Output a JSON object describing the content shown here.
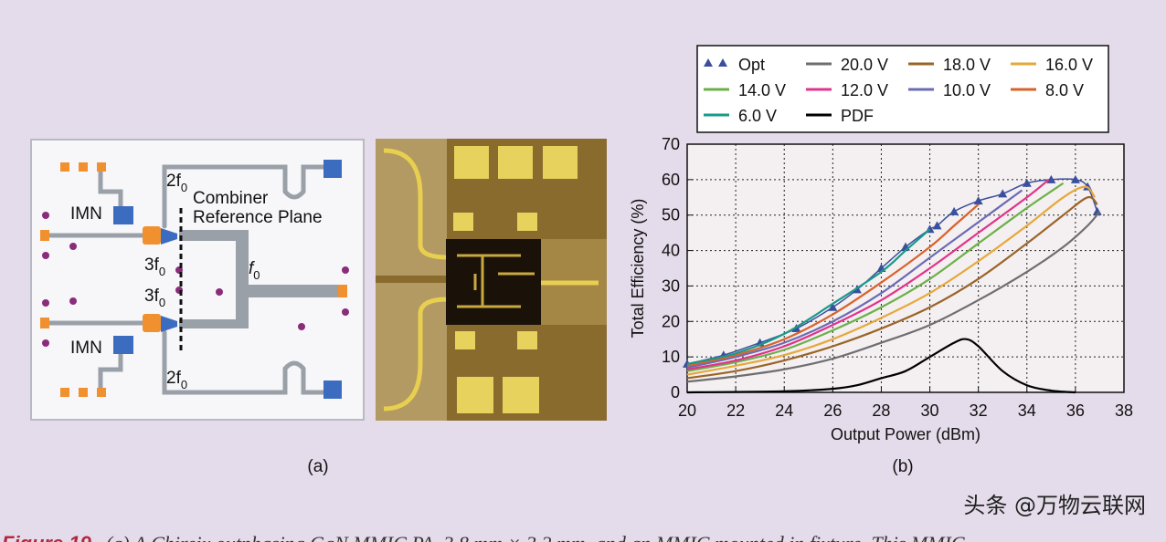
{
  "panel_a": {
    "top_harmonic": {
      "main": "2f",
      "sub": "0"
    },
    "combiner": "Combiner",
    "reference_plane": "Reference Plane",
    "imn_top": "IMN",
    "third_top": {
      "main": "3f",
      "sub": "0"
    },
    "third_bottom": {
      "main": "3f",
      "sub": "0"
    },
    "fundamental": {
      "main": "f",
      "sub": "0"
    },
    "imn_bottom": "IMN",
    "bottom_harmonic": {
      "main": "2f",
      "sub": "0"
    },
    "caption": "(a)"
  },
  "panel_b_caption": "(b)",
  "watermark": "头条 @万物云联网",
  "figure_caption": {
    "label": "Figure 19.",
    "text": "(a) A Chireix outphasing GaN MMIC PA, 3.8 mm × 3.2 mm, and an MMIC mounted in fixture. This MMIC"
  },
  "chart_data": {
    "type": "line",
    "x_label": "Output Power (dBm)",
    "y_label": "Total Efficiency (%)",
    "xlim": [
      20,
      38
    ],
    "ylim": [
      0,
      70
    ],
    "xticks": [
      20,
      22,
      24,
      26,
      28,
      30,
      32,
      34,
      36,
      38
    ],
    "yticks": [
      0,
      10,
      20,
      30,
      40,
      50,
      60,
      70
    ],
    "grid": true,
    "legend": "top",
    "series": [
      {
        "name": "Opt",
        "color": "#3a4f9e",
        "marker": "triangle",
        "x": [
          20,
          21.5,
          23,
          24.5,
          26,
          27,
          28,
          29,
          30,
          30.3,
          31,
          32,
          33,
          34,
          35,
          36,
          36.5,
          36.9
        ],
        "values": [
          8,
          10.5,
          14,
          18,
          24,
          29,
          35,
          41,
          46,
          47,
          51,
          54,
          56,
          59,
          60,
          60,
          58,
          51
        ]
      },
      {
        "name": "20.0 V",
        "color": "#6e6e70",
        "x": [
          20,
          22,
          24,
          26,
          28,
          30,
          32,
          34,
          35.5,
          36.5,
          37
        ],
        "values": [
          3,
          4.5,
          6.5,
          9.5,
          14,
          19,
          26,
          34,
          41,
          47,
          51
        ]
      },
      {
        "name": "18.0 V",
        "color": "#9a6428",
        "x": [
          20,
          22,
          24,
          26,
          28,
          30,
          32,
          34,
          35.5,
          36.5,
          36.9
        ],
        "values": [
          4,
          6,
          9,
          13,
          18,
          24,
          32,
          42,
          50,
          55,
          53
        ]
      },
      {
        "name": "16.0 V",
        "color": "#e6a83a",
        "x": [
          20,
          22,
          24,
          26,
          28,
          30,
          32,
          34,
          35.5,
          36.4,
          36.8
        ],
        "values": [
          5,
          7.5,
          10.5,
          15,
          21,
          28,
          37,
          47,
          55,
          58,
          55
        ]
      },
      {
        "name": "14.0 V",
        "color": "#6cb04a",
        "x": [
          20,
          22,
          24,
          26,
          28,
          30,
          32,
          34,
          35.5
        ],
        "values": [
          6,
          8.5,
          12,
          17.5,
          24,
          32,
          42,
          52,
          59
        ]
      },
      {
        "name": "12.0 V",
        "color": "#e0338a",
        "x": [
          20,
          22,
          24,
          26,
          28,
          30,
          32,
          34,
          34.9
        ],
        "values": [
          6.5,
          9,
          13,
          19,
          26,
          35,
          45,
          55,
          60
        ]
      },
      {
        "name": "10.0 V",
        "color": "#6b6bb5",
        "x": [
          20,
          22,
          24,
          26,
          28,
          30,
          32,
          33,
          33.8
        ],
        "values": [
          7,
          10,
          14,
          20,
          28,
          38,
          48,
          53,
          57
        ]
      },
      {
        "name": "8.0 V",
        "color": "#d8622a",
        "x": [
          20,
          22,
          24,
          26,
          28,
          30,
          31,
          32
        ],
        "values": [
          7.5,
          10.5,
          15,
          22,
          31,
          41,
          47,
          53
        ]
      },
      {
        "name": "6.0 V",
        "color": "#1a9a88",
        "x": [
          20,
          22,
          24,
          26,
          28,
          29,
          30
        ],
        "values": [
          8,
          11,
          16.5,
          25,
          34,
          40,
          46
        ]
      },
      {
        "name": "PDF",
        "color": "#000000",
        "x": [
          20,
          24,
          26,
          27,
          28,
          29,
          30,
          31,
          31.5,
          32,
          33,
          34,
          35,
          36
        ],
        "values": [
          0,
          0.3,
          1,
          2,
          4,
          6,
          10,
          14,
          15,
          13,
          6,
          2,
          0.5,
          0
        ]
      }
    ]
  }
}
